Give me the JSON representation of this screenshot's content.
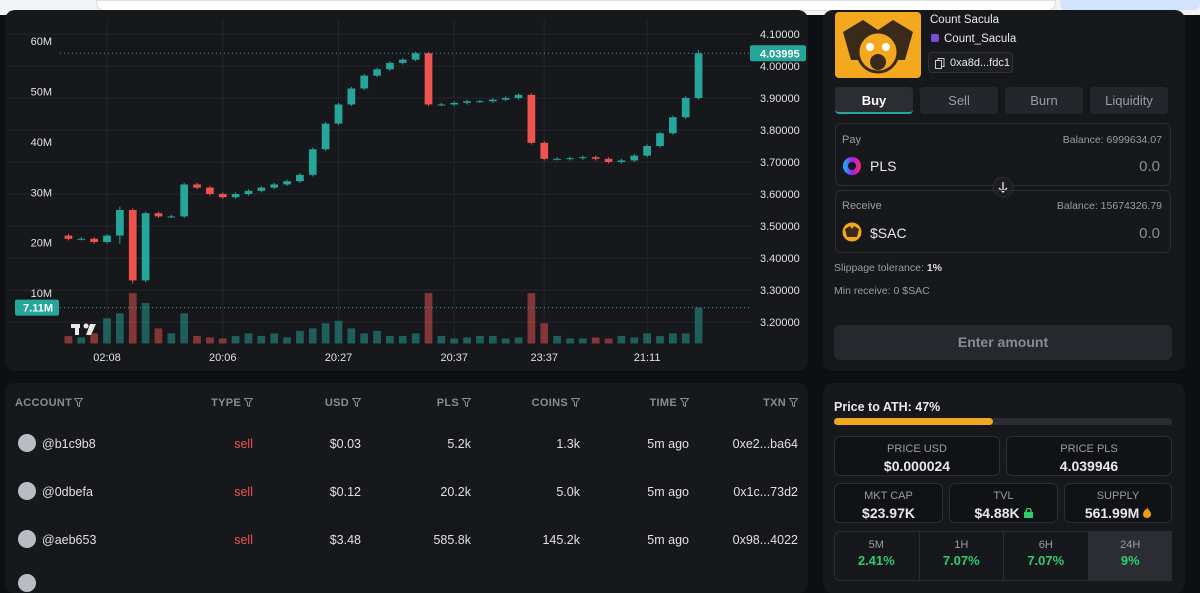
{
  "chart_data": {
    "type": "candlestick",
    "categories": [
      null,
      null,
      null,
      "02:08",
      null,
      null,
      null,
      null,
      null,
      null,
      null,
      null,
      "20:06",
      null,
      null,
      null,
      null,
      null,
      null,
      null,
      null,
      "20:27",
      null,
      null,
      null,
      null,
      null,
      null,
      null,
      null,
      "20:37",
      null,
      null,
      null,
      null,
      null,
      null,
      "23:37",
      null,
      null,
      null,
      null,
      null,
      null,
      null,
      "21:11",
      null,
      null,
      null,
      null
    ],
    "open": [
      3.47,
      3.46,
      3.46,
      3.45,
      3.47,
      3.55,
      3.33,
      3.54,
      3.53,
      3.53,
      3.63,
      3.62,
      3.6,
      3.59,
      3.6,
      3.61,
      3.62,
      3.63,
      3.64,
      3.66,
      3.74,
      3.82,
      3.88,
      3.93,
      3.97,
      3.99,
      4.01,
      4.02,
      4.04,
      3.88,
      3.88,
      3.885,
      3.89,
      3.89,
      3.895,
      3.9,
      3.91,
      3.76,
      3.71,
      3.71,
      3.712,
      3.715,
      3.71,
      3.7,
      3.705,
      3.72,
      3.75,
      3.79,
      3.84,
      3.9
    ],
    "high": [
      3.475,
      3.465,
      3.465,
      3.475,
      3.56,
      3.555,
      3.545,
      3.545,
      3.535,
      3.635,
      3.635,
      3.625,
      3.605,
      3.605,
      3.615,
      3.625,
      3.635,
      3.645,
      3.665,
      3.745,
      3.825,
      3.885,
      3.935,
      3.975,
      3.995,
      4.015,
      4.025,
      4.045,
      4.045,
      3.885,
      3.89,
      3.895,
      3.895,
      3.9,
      3.905,
      3.915,
      3.915,
      3.765,
      3.715,
      3.717,
      3.72,
      3.72,
      3.715,
      3.71,
      3.725,
      3.755,
      3.795,
      3.845,
      3.905,
      4.05
    ],
    "low": [
      3.455,
      3.455,
      3.445,
      3.445,
      3.445,
      3.32,
      3.325,
      3.525,
      3.525,
      3.525,
      3.615,
      3.595,
      3.585,
      3.585,
      3.595,
      3.605,
      3.615,
      3.625,
      3.635,
      3.655,
      3.735,
      3.815,
      3.875,
      3.925,
      3.965,
      3.985,
      4.005,
      4.015,
      3.875,
      3.875,
      3.875,
      3.88,
      3.885,
      3.885,
      3.89,
      3.895,
      3.755,
      3.705,
      3.705,
      3.705,
      3.707,
      3.705,
      3.695,
      3.695,
      3.7,
      3.715,
      3.745,
      3.785,
      3.835,
      3.895
    ],
    "close": [
      3.46,
      3.46,
      3.45,
      3.47,
      3.55,
      3.33,
      3.54,
      3.53,
      3.53,
      3.63,
      3.62,
      3.6,
      3.59,
      3.6,
      3.61,
      3.62,
      3.63,
      3.64,
      3.66,
      3.74,
      3.82,
      3.88,
      3.93,
      3.97,
      3.99,
      4.01,
      4.02,
      4.04,
      3.88,
      3.88,
      3.885,
      3.89,
      3.89,
      3.895,
      3.9,
      3.91,
      3.76,
      3.71,
      3.71,
      3.712,
      3.715,
      3.71,
      3.7,
      3.705,
      3.72,
      3.75,
      3.79,
      3.84,
      3.9,
      4.03995
    ],
    "volume": [
      1.5,
      1.2,
      2,
      5,
      6,
      10,
      8,
      3,
      2,
      6,
      1.5,
      1.2,
      1,
      1.5,
      2,
      1.5,
      2,
      1.2,
      2.5,
      3,
      4,
      4.5,
      3,
      2,
      2.5,
      1.5,
      1.5,
      2,
      10,
      1.5,
      1,
      1.2,
      1.5,
      1.5,
      1,
      1.2,
      10,
      4,
      1.5,
      1,
      1,
      1.2,
      1,
      1.5,
      1.2,
      2,
      1.5,
      2,
      2,
      7.11
    ],
    "ylim": [
      3.128,
      4.144
    ],
    "yticks": [
      {
        "value": 4.1,
        "label": "4.10000"
      },
      {
        "value": 4.0,
        "label": "4.00000"
      },
      {
        "value": 3.9,
        "label": "3.90000"
      },
      {
        "value": 3.8,
        "label": "3.80000"
      },
      {
        "value": 3.7,
        "label": "3.70000"
      },
      {
        "value": 3.6,
        "label": "3.60000"
      },
      {
        "value": 3.5,
        "label": "3.50000"
      },
      {
        "value": 3.4,
        "label": "3.40000"
      },
      {
        "value": 3.3,
        "label": "3.30000"
      },
      {
        "value": 3.2,
        "label": "3.20000"
      }
    ],
    "y2lim": [
      -0.3,
      64.2
    ],
    "y2ticks": [
      {
        "value": 60,
        "label": "60M"
      },
      {
        "value": 50,
        "label": "50M"
      },
      {
        "value": 40,
        "label": "40M"
      },
      {
        "value": 30,
        "label": "30M"
      },
      {
        "value": 20,
        "label": "20M"
      },
      {
        "value": 10,
        "label": "10M"
      }
    ],
    "last_price_label": "4.03995",
    "last_volume_label": "7.11M",
    "up_color": "#26a69a",
    "down_color": "#ef5350",
    "grid": true
  },
  "token": {
    "name": "Count Sacula",
    "handle": "Count_Sacula",
    "address": "0xa8d...fdc1"
  },
  "swap": {
    "tabs": [
      "Buy",
      "Sell",
      "Burn",
      "Liquidity"
    ],
    "pay_label": "Pay",
    "pay_balance": "Balance: 6999634.07",
    "pay_token": "PLS",
    "pay_amount": "0.0",
    "receive_label": "Receive",
    "receive_balance": "Balance: 15674326.79",
    "receive_token": "$SAC",
    "receive_amount": "0.0",
    "slippage_label": "Slippage tolerance:",
    "slippage_value": "1%",
    "min_receive": "Min receive: 0 $SAC",
    "button": "Enter amount"
  },
  "trades": {
    "columns": [
      "ACCOUNT",
      "TYPE",
      "USD",
      "PLS",
      "COINS",
      "TIME",
      "TXN"
    ],
    "rows": [
      [
        "@b1c9b8",
        "sell",
        "$0.03",
        "5.2k",
        "1.3k",
        "5m ago",
        "0xe2...ba64"
      ],
      [
        "@0dbefa",
        "sell",
        "$0.12",
        "20.2k",
        "5.0k",
        "5m ago",
        "0x1c...73d2"
      ],
      [
        "@aeb653",
        "sell",
        "$3.48",
        "585.8k",
        "145.2k",
        "5m ago",
        "0x98...4022"
      ]
    ]
  },
  "stats": {
    "ath_label": "Price to ATH: 47%",
    "ath_value": 47,
    "price_usd_label": "PRICE USD",
    "price_usd": "$0.000024",
    "price_pls_label": "PRICE PLS",
    "price_pls": "4.039946",
    "mkt_cap_label": "MKT CAP",
    "mkt_cap": "$23.97K",
    "tvl_label": "TVL",
    "tvl": "$4.88K",
    "supply_label": "SUPPLY",
    "supply": "561.99M",
    "changes": [
      {
        "label": "5M",
        "value": "2.41%"
      },
      {
        "label": "1H",
        "value": "7.07%"
      },
      {
        "label": "6H",
        "value": "7.07%"
      },
      {
        "label": "24H",
        "value": "9%"
      }
    ]
  }
}
